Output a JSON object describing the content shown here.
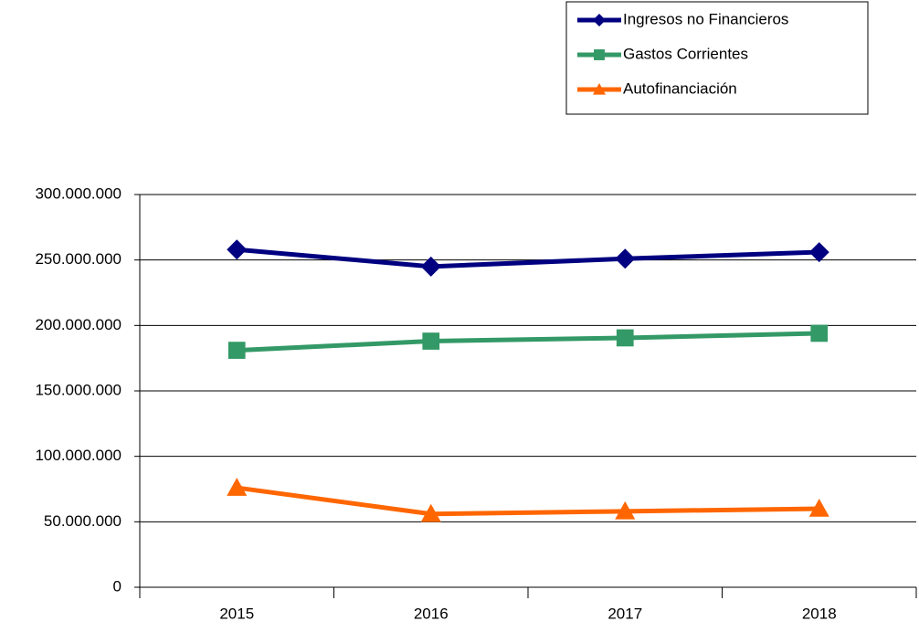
{
  "chart_data": {
    "type": "line",
    "categories": [
      "2015",
      "2016",
      "2017",
      "2018"
    ],
    "series": [
      {
        "name": "Ingresos no Financieros",
        "color": "#000080",
        "marker": "diamond",
        "values": [
          258000000,
          245000000,
          251000000,
          256000000
        ]
      },
      {
        "name": "Gastos Corrientes",
        "color": "#339966",
        "marker": "square",
        "values": [
          181000000,
          188000000,
          190500000,
          194000000
        ]
      },
      {
        "name": "Autofinanciación",
        "color": "#ff6600",
        "marker": "triangle",
        "values": [
          76000000,
          56000000,
          58000000,
          60000000
        ]
      }
    ],
    "ylim": [
      0,
      300000000
    ],
    "yticks": [
      0,
      {
        "value": 50000000,
        "label": "50.000.000"
      },
      {
        "value": 100000000,
        "label": "100.000.000"
      },
      {
        "value": 150000000,
        "label": "150.000.000"
      },
      {
        "value": 200000000,
        "label": "200.000.000"
      },
      {
        "value": 250000000,
        "label": "250.000.000"
      },
      {
        "value": 300000000,
        "label": "300.000.000"
      }
    ],
    "grid": true,
    "legend": "top-right"
  }
}
